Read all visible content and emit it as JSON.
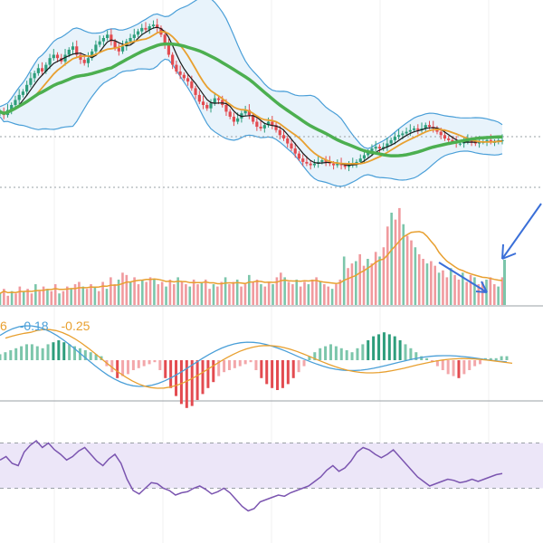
{
  "chart_data": [
    {
      "type": "candlestick",
      "title": "",
      "closes": [
        46,
        44,
        47,
        50,
        53,
        56,
        58,
        62,
        66,
        69,
        72,
        70,
        74,
        78,
        80,
        78,
        76,
        80,
        83,
        85,
        80,
        77,
        75,
        78,
        82,
        86,
        88,
        90,
        92,
        88,
        84,
        82,
        85,
        88,
        90,
        92,
        94,
        96,
        95,
        97,
        98,
        96,
        92,
        86,
        80,
        74,
        70,
        68,
        66,
        64,
        60,
        56,
        52,
        50,
        48,
        51,
        54,
        53,
        50,
        46,
        43,
        40,
        42,
        45,
        47,
        44,
        40,
        37,
        36,
        38,
        40,
        38,
        35,
        32,
        30,
        27,
        24,
        21,
        18,
        16,
        15,
        14,
        15,
        16,
        17,
        16,
        15,
        14,
        15,
        14,
        13,
        14,
        15,
        16,
        18,
        20,
        22,
        24,
        25,
        24,
        25,
        27,
        29,
        31,
        32,
        33,
        34,
        35,
        36,
        35,
        36,
        38,
        37,
        36,
        34,
        32,
        30,
        29,
        28,
        27,
        27,
        28,
        29,
        28,
        27,
        28,
        28,
        29,
        28,
        28,
        29,
        29
      ],
      "series": [
        {
          "name": "",
          "role": "ma-short",
          "color": "#1a1a1a"
        },
        {
          "name": "",
          "role": "ma-medium",
          "color": "#e8a030"
        },
        {
          "name": "",
          "role": "ma-long",
          "color": "#4caf50"
        },
        {
          "name": "",
          "role": "bollinger-bands",
          "color": "#4a9fd8"
        }
      ],
      "up_color": "#2e9e7c",
      "down_color": "#e34b50"
    },
    {
      "type": "bar",
      "role": "volume",
      "values": [
        5,
        7,
        4,
        6,
        5,
        8,
        6,
        7,
        5,
        9,
        6,
        8,
        7,
        6,
        9,
        5,
        6,
        8,
        7,
        9,
        10,
        8,
        7,
        9,
        8,
        6,
        10,
        7,
        12,
        9,
        11,
        14,
        13,
        10,
        12,
        9,
        11,
        10,
        12,
        11,
        9,
        10,
        8,
        11,
        9,
        12,
        10,
        9,
        8,
        11,
        9,
        10,
        11,
        7,
        9,
        8,
        10,
        12,
        9,
        10,
        11,
        8,
        9,
        13,
        10,
        11,
        9,
        8,
        10,
        9,
        12,
        14,
        12,
        10,
        9,
        11,
        8,
        10,
        9,
        11,
        12,
        10,
        9,
        8,
        7,
        9,
        11,
        21,
        16,
        18,
        19,
        22,
        17,
        20,
        18,
        23,
        21,
        25,
        34,
        40,
        37,
        42,
        35,
        30,
        28,
        25,
        22,
        20,
        18,
        19,
        17,
        14,
        15,
        12,
        16,
        13,
        11,
        14,
        10,
        13,
        12,
        9,
        10,
        11,
        12,
        9,
        8,
        12
      ],
      "series": [
        {
          "name": "",
          "role": "volume-ma",
          "color": "#e8a030"
        }
      ],
      "annotation_color": "#3a6fd8"
    },
    {
      "type": "bar",
      "role": "macd",
      "labels": [
        {
          "text": "6",
          "color": "#e8a030"
        },
        {
          "text": "-0.18",
          "color": "#4a9fd8"
        },
        {
          "text": "-0.25",
          "color": "#e8a030"
        }
      ],
      "histogram": [
        3,
        4,
        5,
        6,
        7,
        8,
        8,
        7,
        6,
        8,
        9,
        10,
        9,
        8,
        7,
        6,
        5,
        4,
        3,
        2,
        -3,
        -6,
        -9,
        -8,
        -7,
        -5,
        -4,
        -3,
        -2,
        -1,
        -5,
        -9,
        -14,
        -18,
        -22,
        -24,
        -23,
        -20,
        -17,
        -14,
        -11,
        -8,
        -6,
        -5,
        -4,
        -3,
        -2,
        -1,
        -5,
        -9,
        -12,
        -14,
        -15,
        -14,
        -12,
        -9,
        -6,
        -3,
        2,
        4,
        6,
        7,
        8,
        7,
        6,
        5,
        4,
        6,
        8,
        10,
        12,
        13,
        14,
        13,
        12,
        10,
        8,
        6,
        4,
        2,
        1,
        -1,
        -3,
        -5,
        -7,
        -8,
        -9,
        -7,
        -5,
        -3,
        -2,
        1,
        1,
        1,
        2,
        2
      ],
      "series": [
        {
          "name": "",
          "role": "macd-line",
          "color": "#4a9fd8"
        },
        {
          "name": "",
          "role": "signal-line",
          "color": "#e8a030"
        }
      ],
      "up_color": "#2e9e7c",
      "down_color": "#e34b50"
    },
    {
      "type": "line",
      "role": "rsi",
      "values": [
        55,
        58,
        52,
        50,
        62,
        68,
        72,
        66,
        70,
        64,
        60,
        55,
        58,
        63,
        66,
        60,
        54,
        50,
        56,
        60,
        52,
        38,
        28,
        25,
        30,
        35,
        34,
        30,
        28,
        24,
        26,
        27,
        30,
        32,
        29,
        25,
        27,
        30,
        26,
        20,
        14,
        10,
        12,
        18,
        20,
        22,
        24,
        23,
        26,
        28,
        30,
        32,
        36,
        40,
        46,
        50,
        45,
        48,
        54,
        62,
        66,
        64,
        60,
        57,
        60,
        64,
        58,
        52,
        46,
        40,
        36,
        32,
        34,
        36,
        38,
        37,
        35,
        36,
        38,
        36,
        38,
        40,
        42,
        43
      ],
      "levels": [
        70,
        30
      ],
      "color": "#7b55b0",
      "band_color": "#ece6f8"
    }
  ]
}
